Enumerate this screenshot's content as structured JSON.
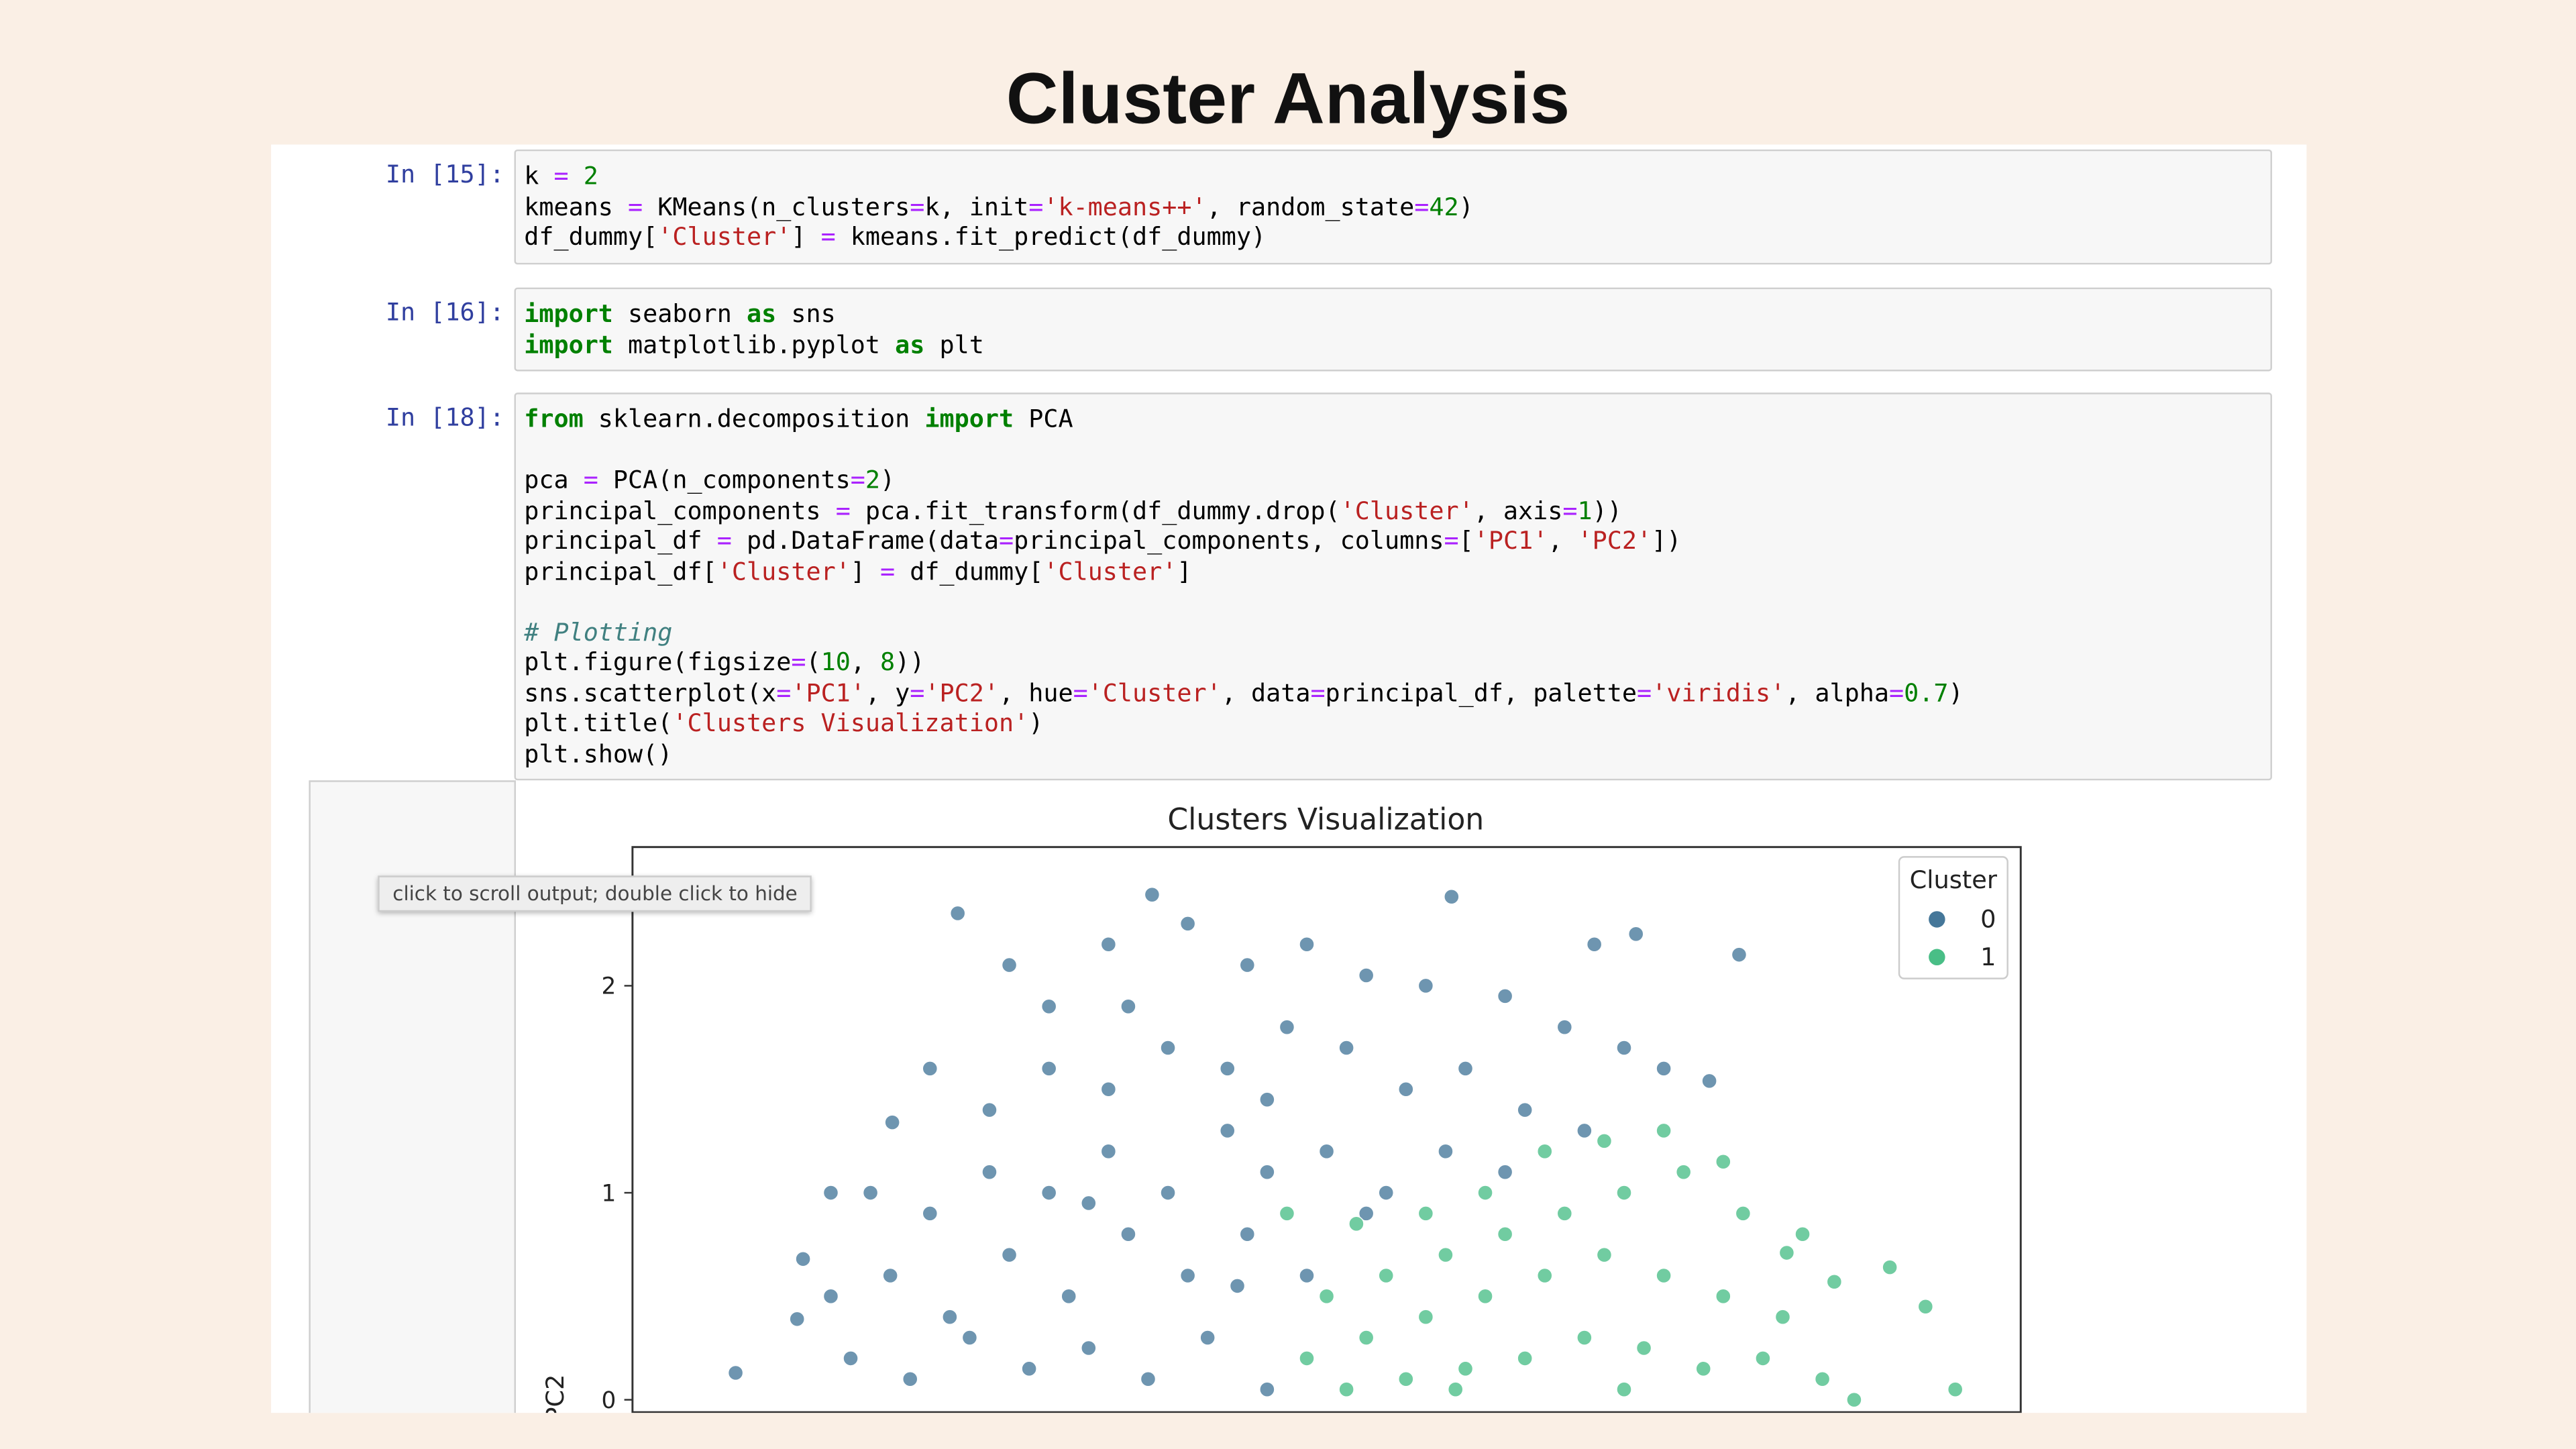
{
  "header": {
    "title": "Cluster Analysis"
  },
  "cells": [
    {
      "prompt": "In [15]:",
      "code": "k = 2\nkmeans = KMeans(n_clusters=k, init='k-means++', random_state=42)\ndf_dummy['Cluster'] = kmeans.fit_predict(df_dummy)"
    },
    {
      "prompt": "In [16]:",
      "code": "import seaborn as sns\nimport matplotlib.pyplot as plt"
    },
    {
      "prompt": "In [18]:",
      "code": "from sklearn.decomposition import PCA\n\npca = PCA(n_components=2)\nprincipal_components = pca.fit_transform(df_dummy.drop('Cluster', axis=1))\nprincipal_df = pd.DataFrame(data=principal_components, columns=['PC1', 'PC2'])\nprincipal_df['Cluster'] = df_dummy['Cluster']\n\n# Plotting\nplt.figure(figsize=(10, 8))\nsns.scatterplot(x='PC1', y='PC2', hue='Cluster', data=principal_df, palette='viridis', alpha=0.7)\nplt.title('Clusters Visualization')\nplt.show()"
    }
  ],
  "tooltip": "click to scroll output; double click to hide",
  "chart_data": {
    "type": "scatter",
    "title": "Clusters Visualization",
    "y_label": "PC2",
    "legend_title": "Cluster",
    "legend": "upper right",
    "xlim": [
      -3,
      4
    ],
    "ylim": [
      -0.06,
      2.67
    ],
    "yticks": [
      0,
      1,
      2
    ],
    "series": [
      {
        "name": "0",
        "color": "#31688e",
        "x": [
          -1.36,
          -0.38,
          1.13,
          2.06,
          2.58,
          1.85,
          -2.48,
          -2.17,
          -2.0,
          -2.14,
          -1.69,
          2.43,
          -1.1,
          -0.9,
          -0.6,
          -0.2,
          0.1,
          0.4,
          0.7,
          1.0,
          1.4,
          1.7,
          2.0,
          2.2,
          -1.5,
          -1.2,
          -0.9,
          -0.6,
          -0.3,
          0.0,
          0.3,
          0.6,
          0.9,
          1.2,
          1.5,
          1.8,
          -1.8,
          -1.5,
          -1.2,
          -0.9,
          -0.6,
          -0.3,
          0.0,
          0.2,
          0.5,
          0.8,
          1.1,
          1.4,
          -2.0,
          -1.7,
          -1.4,
          -1.1,
          -0.8,
          -0.5,
          -0.2,
          0.1,
          0.4,
          0.7,
          -1.9,
          -1.6,
          -1.3,
          -1.0,
          -0.7,
          -0.4,
          -0.1,
          0.2,
          -0.5,
          0.2,
          -0.7,
          0.05
        ],
        "y": [
          2.35,
          2.44,
          2.43,
          2.25,
          2.15,
          2.2,
          0.13,
          0.39,
          1.0,
          0.68,
          1.34,
          1.54,
          2.1,
          1.9,
          2.2,
          2.3,
          2.1,
          2.2,
          2.05,
          2.0,
          1.95,
          1.8,
          1.7,
          1.6,
          1.6,
          1.4,
          1.6,
          1.5,
          1.7,
          1.6,
          1.8,
          1.7,
          1.5,
          1.6,
          1.4,
          1.3,
          1.0,
          0.9,
          1.1,
          1.0,
          1.2,
          1.0,
          1.3,
          1.1,
          1.2,
          1.0,
          1.2,
          1.1,
          0.5,
          0.6,
          0.4,
          0.7,
          0.5,
          0.8,
          0.6,
          0.8,
          0.6,
          0.9,
          0.2,
          0.1,
          0.3,
          0.15,
          0.25,
          0.1,
          0.3,
          0.05,
          1.9,
          1.45,
          0.95,
          0.55
        ]
      },
      {
        "name": "1",
        "color": "#35b779",
        "x": [
          3.67,
          3.52,
          3.34,
          3.06,
          2.82,
          3.16,
          0.5,
          0.8,
          1.1,
          1.4,
          1.7,
          2.0,
          2.3,
          2.6,
          2.8,
          0.4,
          0.7,
          1.0,
          1.3,
          1.6,
          1.9,
          2.2,
          2.5,
          0.6,
          0.9,
          1.2,
          1.5,
          1.8,
          2.1,
          2.4,
          2.7,
          3.0,
          1.0,
          1.3,
          1.6,
          1.9,
          2.2,
          0.3,
          0.65,
          2.5,
          2.9,
          1.15,
          2.0
        ],
        "y": [
          0.05,
          0.45,
          0.64,
          0.57,
          0.71,
          0.0,
          0.5,
          0.6,
          0.7,
          0.8,
          0.9,
          1.0,
          1.1,
          0.9,
          0.4,
          0.2,
          0.3,
          0.4,
          0.5,
          0.6,
          0.7,
          0.6,
          0.5,
          0.05,
          0.1,
          0.15,
          0.2,
          0.3,
          0.25,
          0.15,
          0.2,
          0.1,
          0.9,
          1.0,
          1.2,
          1.25,
          1.3,
          0.9,
          0.85,
          1.15,
          0.8,
          0.05,
          0.05
        ]
      }
    ]
  }
}
